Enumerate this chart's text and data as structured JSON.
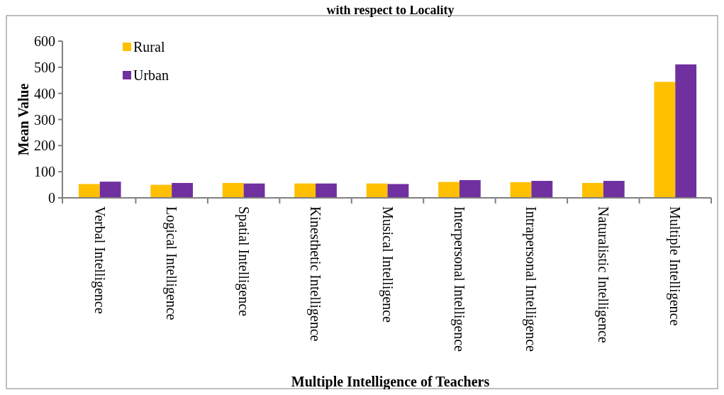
{
  "chart_data": {
    "type": "bar",
    "title": "with respect to Locality",
    "xlabel": "Multiple Intelligence of Teachers",
    "ylabel": "Mean Value",
    "categories": [
      "Verbal Intelligence",
      "Logical Intelligence",
      "Spatial Intelligence",
      "Kinesthetic Intelligence",
      "Musical Intelligence",
      "Interpersonal Intelligence",
      "Intrapersonal Intelligence",
      "Naturalistic Intelligence",
      "Multiple Intelligence"
    ],
    "series": [
      {
        "name": "Rural",
        "color": "#ffc000",
        "values": [
          53,
          50,
          57,
          55,
          55,
          61,
          60,
          57,
          444
        ]
      },
      {
        "name": "Urban",
        "color": "#7030a0",
        "values": [
          62,
          57,
          55,
          55,
          53,
          68,
          65,
          65,
          511
        ]
      }
    ],
    "ylim": [
      0,
      600
    ],
    "yticks": [
      0,
      100,
      200,
      300,
      400,
      500,
      600
    ],
    "grid": false,
    "legend": "top left"
  }
}
